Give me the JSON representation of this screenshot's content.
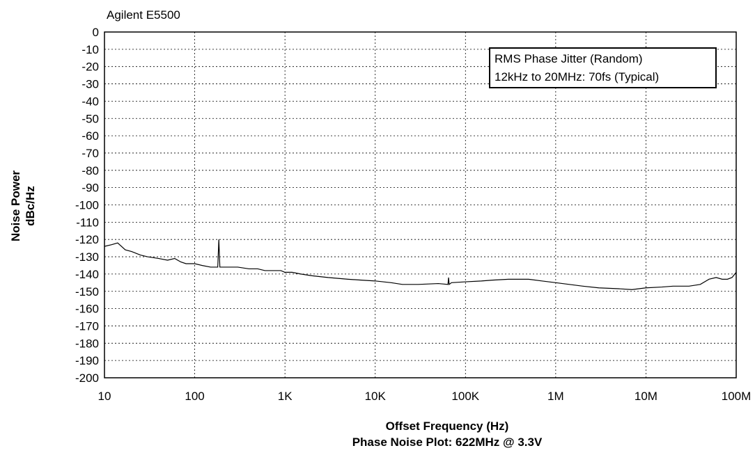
{
  "chart_data": {
    "type": "line",
    "title": "Agilent E5500",
    "xlabel": "Offset Frequency (Hz)",
    "caption": "Phase Noise Plot: 622MHz @ 3.3V",
    "ylabel_line1": "Noise Power",
    "ylabel_line2": "dBc/Hz",
    "x_scale": "log",
    "xlim": [
      10,
      100000000
    ],
    "ylim": [
      -200,
      0
    ],
    "grid": true,
    "x_ticks": [
      {
        "value": 10,
        "label": "10"
      },
      {
        "value": 100,
        "label": "100"
      },
      {
        "value": 1000,
        "label": "1K"
      },
      {
        "value": 10000,
        "label": "10K"
      },
      {
        "value": 100000,
        "label": "100K"
      },
      {
        "value": 1000000,
        "label": "1M"
      },
      {
        "value": 10000000,
        "label": "10M"
      },
      {
        "value": 100000000,
        "label": "100M"
      }
    ],
    "y_ticks": [
      0,
      -10,
      -20,
      -30,
      -40,
      -50,
      -60,
      -70,
      -80,
      -90,
      -100,
      -110,
      -120,
      -130,
      -140,
      -150,
      -160,
      -170,
      -180,
      -190,
      -200
    ],
    "annotation": {
      "line1": "RMS Phase Jitter (Random)",
      "line2": "12kHz to 20MHz: 70fs (Typical)",
      "placement": "top-right"
    },
    "series": [
      {
        "x": [
          10,
          12,
          14,
          17,
          20,
          25,
          30,
          40,
          50,
          60,
          70,
          80,
          100,
          120,
          150,
          180,
          185,
          190,
          200,
          250,
          300,
          400,
          500,
          600,
          700,
          800,
          900,
          1000,
          1200,
          1500,
          2000,
          3000,
          5000,
          7000,
          10000,
          15000,
          20000,
          30000,
          50000,
          64000,
          65000,
          66000,
          70000,
          100000,
          150000,
          200000,
          300000,
          500000,
          700000,
          1000000,
          2000000,
          3000000,
          5000000,
          7000000,
          10000000,
          15000000,
          20000000,
          30000000,
          40000000,
          50000000,
          60000000,
          70000000,
          80000000,
          90000000,
          100000000
        ],
        "y": [
          -124,
          -123,
          -122,
          -126,
          -127,
          -129,
          -130,
          -131,
          -132,
          -131,
          -133,
          -134,
          -134,
          -135,
          -136,
          -136,
          -120,
          -136,
          -136,
          -136,
          -136,
          -137,
          -137,
          -138,
          -138,
          -138,
          -138,
          -139,
          -139,
          -140,
          -141,
          -142,
          -143,
          -143.5,
          -144,
          -145,
          -146,
          -146,
          -145.5,
          -146,
          -142,
          -146,
          -145,
          -144.5,
          -144,
          -143.5,
          -143,
          -143,
          -144,
          -145,
          -147,
          -148,
          -148.5,
          -149,
          -148,
          -147.5,
          -147,
          -147,
          -146,
          -143,
          -142,
          -143,
          -143,
          -142,
          -139
        ]
      }
    ]
  }
}
